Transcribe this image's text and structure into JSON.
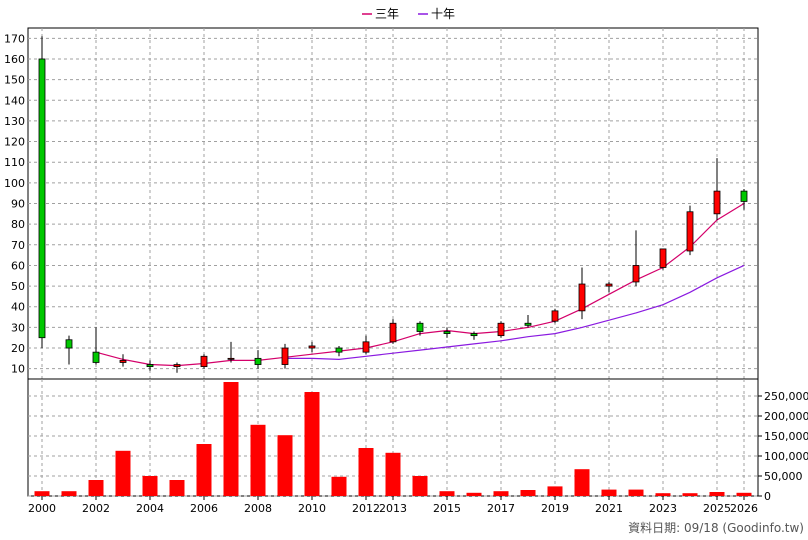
{
  "colors": {
    "up": "#ff0000",
    "down": "#00c800",
    "volume": "#ff0000",
    "ma3": "#d4006a",
    "ma10": "#8a1ae0",
    "grid": "#a0a0a0",
    "axis": "#000000"
  },
  "legend": [
    {
      "label": "三年",
      "color": "#d4006a"
    },
    {
      "label": "十年",
      "color": "#8a1ae0"
    }
  ],
  "credit": "資料日期: 09/18 (Goodinfo.tw)",
  "chart_data": [
    {
      "type": "candlestick",
      "title": "",
      "ylim": [
        5,
        175
      ],
      "y_ticks": [
        10,
        20,
        30,
        40,
        50,
        60,
        70,
        80,
        90,
        100,
        110,
        120,
        130,
        140,
        150,
        160,
        170
      ],
      "y_tick_labels": [
        "10",
        "20",
        "30",
        "40",
        "50",
        "60",
        "70",
        "80",
        "90",
        "100",
        "110",
        "120",
        "130",
        "140",
        "150",
        "160",
        "170"
      ],
      "grid": true,
      "legend_position": "top-center",
      "x_tick_labels": [
        {
          "year": 2000,
          "label": "2000"
        },
        {
          "year": 2002,
          "label": "2002"
        },
        {
          "year": 2004,
          "label": "2004"
        },
        {
          "year": 2006,
          "label": "2006"
        },
        {
          "year": 2008,
          "label": "2008"
        },
        {
          "year": 2010,
          "label": "2010"
        },
        {
          "year": 2012,
          "label": "2012"
        },
        {
          "year": 2013,
          "label": "2013"
        },
        {
          "year": 2015,
          "label": "2015"
        },
        {
          "year": 2017,
          "label": "2017"
        },
        {
          "year": 2019,
          "label": "2019"
        },
        {
          "year": 2021,
          "label": "2021"
        },
        {
          "year": 2023,
          "label": "2023"
        },
        {
          "year": 2025,
          "label": "2025"
        },
        {
          "year": 2026,
          "label": "2026"
        }
      ],
      "candles": [
        {
          "year": 2000,
          "open": 160,
          "high": 171,
          "low": 20,
          "close": 25
        },
        {
          "year": 2001,
          "open": 24,
          "high": 26,
          "low": 12,
          "close": 20
        },
        {
          "year": 2002,
          "open": 18,
          "high": 30,
          "low": 12,
          "close": 13
        },
        {
          "year": 2003,
          "open": 13,
          "high": 17,
          "low": 11,
          "close": 14
        },
        {
          "year": 2004,
          "open": 12,
          "high": 14,
          "low": 9,
          "close": 11
        },
        {
          "year": 2005,
          "open": 11,
          "high": 13,
          "low": 8,
          "close": 12
        },
        {
          "year": 2006,
          "open": 11,
          "high": 17,
          "low": 10,
          "close": 16
        },
        {
          "year": 2007,
          "open": 15,
          "high": 23,
          "low": 13,
          "close": 15
        },
        {
          "year": 2008,
          "open": 15,
          "high": 19,
          "low": 10,
          "close": 12
        },
        {
          "year": 2009,
          "open": 12,
          "high": 22,
          "low": 10,
          "close": 20
        },
        {
          "year": 2010,
          "open": 20,
          "high": 23,
          "low": 18,
          "close": 21
        },
        {
          "year": 2011,
          "open": 20,
          "high": 21,
          "low": 16,
          "close": 18
        },
        {
          "year": 2012,
          "open": 18,
          "high": 26,
          "low": 17,
          "close": 23
        },
        {
          "year": 2013,
          "open": 23,
          "high": 34,
          "low": 22,
          "close": 32
        },
        {
          "year": 2014,
          "open": 32,
          "high": 33,
          "low": 26,
          "close": 28
        },
        {
          "year": 2015,
          "open": 28,
          "high": 30,
          "low": 25,
          "close": 27
        },
        {
          "year": 2016,
          "open": 27,
          "high": 28,
          "low": 24,
          "close": 26
        },
        {
          "year": 2017,
          "open": 26,
          "high": 33,
          "low": 25,
          "close": 32
        },
        {
          "year": 2018,
          "open": 32,
          "high": 36,
          "low": 30,
          "close": 31
        },
        {
          "year": 2019,
          "open": 33,
          "high": 39,
          "low": 32,
          "close": 38
        },
        {
          "year": 2020,
          "open": 38,
          "high": 59,
          "low": 34,
          "close": 51
        },
        {
          "year": 2021,
          "open": 50,
          "high": 52,
          "low": 47,
          "close": 51
        },
        {
          "year": 2022,
          "open": 52,
          "high": 77,
          "low": 50,
          "close": 60
        },
        {
          "year": 2023,
          "open": 59,
          "high": 68,
          "low": 58,
          "close": 68
        },
        {
          "year": 2024,
          "open": 67,
          "high": 89,
          "low": 65,
          "close": 86
        },
        {
          "year": 2025,
          "open": 85,
          "high": 112,
          "low": 82,
          "close": 96
        },
        {
          "year": 2026,
          "open": 96,
          "high": 97,
          "low": 87,
          "close": 91
        }
      ],
      "series": [
        {
          "name": "三年",
          "x": [
            2002,
            2003,
            2004,
            2005,
            2006,
            2007,
            2008,
            2009,
            2010,
            2011,
            2012,
            2013,
            2014,
            2015,
            2016,
            2017,
            2018,
            2019,
            2020,
            2021,
            2022,
            2023,
            2024,
            2025,
            2026
          ],
          "values": [
            18,
            14.5,
            12,
            11.5,
            12.5,
            14,
            14,
            15.5,
            17,
            18.5,
            20,
            23,
            27,
            28.5,
            27,
            28,
            30,
            33,
            39,
            46,
            53,
            59,
            69,
            82,
            90
          ]
        },
        {
          "name": "十年",
          "x": [
            2009,
            2010,
            2011,
            2012,
            2013,
            2014,
            2015,
            2016,
            2017,
            2018,
            2019,
            2020,
            2021,
            2022,
            2023,
            2024,
            2025,
            2026
          ],
          "values": [
            15,
            15,
            14.5,
            16,
            17.5,
            19,
            20.5,
            22,
            23.5,
            25.5,
            27,
            30,
            33.5,
            37,
            41,
            47,
            54,
            60
          ]
        }
      ]
    },
    {
      "type": "bar",
      "title": "",
      "ylim": [
        0,
        285000
      ],
      "y_ticks": [
        0,
        50000,
        100000,
        150000,
        200000,
        250000
      ],
      "y_tick_labels": [
        "0",
        "50,000",
        "100,000",
        "150,000",
        "200,000",
        "250,000"
      ],
      "grid": true,
      "categories": [
        2000,
        2001,
        2002,
        2003,
        2004,
        2005,
        2006,
        2007,
        2008,
        2009,
        2010,
        2011,
        2012,
        2013,
        2014,
        2015,
        2016,
        2017,
        2018,
        2019,
        2020,
        2021,
        2022,
        2023,
        2024,
        2025,
        2026
      ],
      "values": [
        12000,
        12000,
        40000,
        113000,
        50000,
        40000,
        130000,
        285000,
        178000,
        152000,
        260000,
        48000,
        120000,
        108000,
        50000,
        12000,
        8000,
        12000,
        15000,
        24000,
        67000,
        16000,
        16000,
        7000,
        7000,
        10000,
        8000
      ]
    }
  ]
}
